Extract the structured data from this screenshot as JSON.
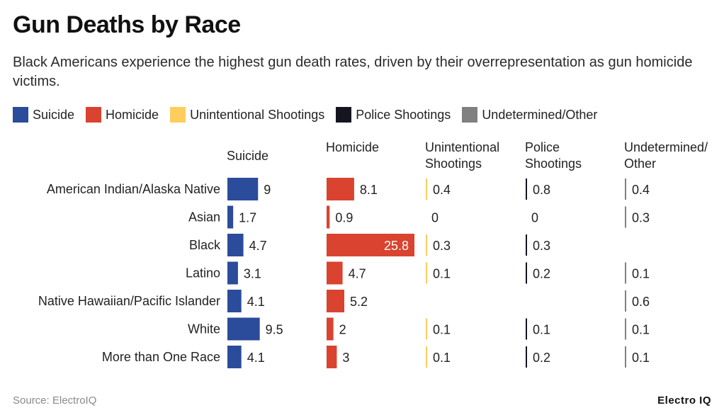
{
  "title": "Gun Deaths by Race",
  "subtitle": "Black Americans experience the highest gun death rates, driven by their overrepresentation as gun homicide victims.",
  "source": "Source: ElectroIQ",
  "brand": "Electro IQ",
  "legend": [
    {
      "label": "Suicide",
      "color": "#2b4b9b"
    },
    {
      "label": "Homicide",
      "color": "#d9432f"
    },
    {
      "label": "Unintentional Shootings",
      "color": "#ffcd5c"
    },
    {
      "label": "Police Shootings",
      "color": "#15151f"
    },
    {
      "label": "Undetermined/Other",
      "color": "#808080"
    }
  ],
  "chart_data": {
    "type": "bar",
    "categories": [
      "American Indian/Alaska Native",
      "Asian",
      "Black",
      "Latino",
      "Native Hawaiian/Pacific Islander",
      "White",
      "More than One Race"
    ],
    "series": [
      {
        "name": "Suicide",
        "header": [
          "Suicide"
        ],
        "color": "#2b4b9b",
        "values": [
          9,
          1.7,
          4.7,
          3.1,
          4.1,
          9.5,
          4.1
        ]
      },
      {
        "name": "Homicide",
        "header": [
          "Homicide"
        ],
        "color": "#d9432f",
        "values": [
          8.1,
          0.9,
          25.8,
          4.7,
          5.2,
          2,
          3
        ]
      },
      {
        "name": "Unintentional Shootings",
        "header": [
          "Unintentional",
          "Shootings"
        ],
        "color": "#ffcd5c",
        "values": [
          0.4,
          0,
          0.3,
          0.1,
          null,
          0.1,
          0.1
        ]
      },
      {
        "name": "Police Shootings",
        "header": [
          "Police",
          "Shootings"
        ],
        "color": "#15151f",
        "values": [
          0.8,
          0,
          0.3,
          0.2,
          null,
          0.1,
          0.2
        ]
      },
      {
        "name": "Undetermined/Other",
        "header": [
          "Undetermined/",
          "Other"
        ],
        "color": "#808080",
        "values": [
          0.4,
          0.3,
          null,
          0.1,
          0.6,
          0.1,
          0.1
        ]
      }
    ]
  }
}
